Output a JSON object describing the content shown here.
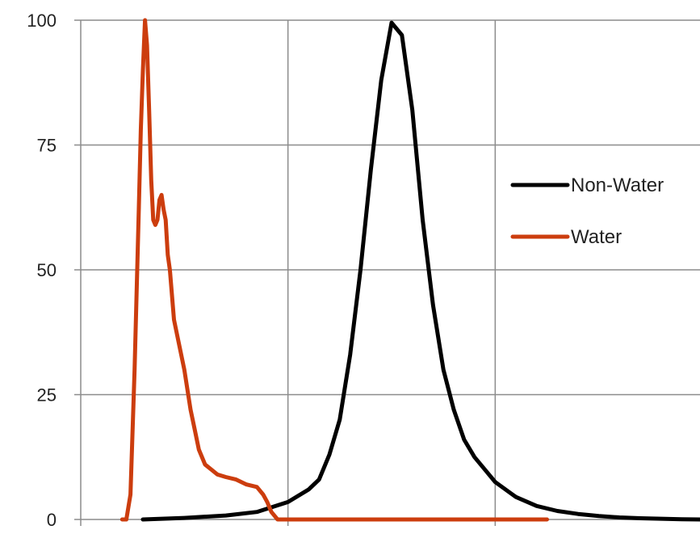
{
  "chart_data": {
    "type": "line",
    "title": "",
    "xlabel": "",
    "ylabel": "",
    "ylim": [
      0,
      100
    ],
    "xlim": [
      0,
      300
    ],
    "y_ticks": [
      0,
      25,
      50,
      75,
      100
    ],
    "x_ticks": [
      0,
      100,
      200
    ],
    "grid": {
      "horizontal": true,
      "vertical": true
    },
    "legend": {
      "placement": "right"
    },
    "series": [
      {
        "name": "Non-Water",
        "color": "#000000",
        "x": [
          30,
          50,
          70,
          85,
          100,
          110,
          115,
          120,
          125,
          130,
          135,
          140,
          145,
          150,
          155,
          160,
          165,
          170,
          175,
          180,
          185,
          190,
          195,
          200,
          210,
          220,
          230,
          240,
          250,
          260,
          270,
          280,
          290,
          300
        ],
        "y": [
          0,
          0.3,
          0.8,
          1.5,
          3.5,
          6,
          8,
          13,
          20,
          33,
          50,
          70,
          88,
          99.5,
          97,
          82,
          60,
          43,
          30,
          22,
          16,
          12.5,
          10,
          7.5,
          4.5,
          2.7,
          1.7,
          1.1,
          0.7,
          0.4,
          0.25,
          0.15,
          0.05,
          0
        ]
      },
      {
        "name": "Water",
        "color": "#cc3d0e",
        "x": [
          20,
          22,
          24,
          26,
          28,
          29,
          30,
          31,
          32,
          33,
          34,
          35,
          36,
          37,
          38,
          39,
          40,
          41,
          42,
          43,
          45,
          47,
          50,
          53,
          55,
          57,
          60,
          63,
          66,
          70,
          75,
          80,
          85,
          88,
          90,
          92,
          95,
          100,
          110,
          130,
          150,
          180,
          200,
          225
        ],
        "y": [
          0,
          0,
          5,
          30,
          62,
          78,
          90,
          100,
          95,
          82,
          68,
          60,
          59,
          60,
          64,
          65,
          62,
          60,
          53,
          50,
          40,
          36,
          30,
          22,
          18,
          14,
          11,
          10,
          9,
          8.5,
          8,
          7,
          6.5,
          5,
          3.5,
          1.5,
          0,
          0,
          0,
          0,
          0,
          0,
          0,
          0
        ]
      }
    ]
  }
}
